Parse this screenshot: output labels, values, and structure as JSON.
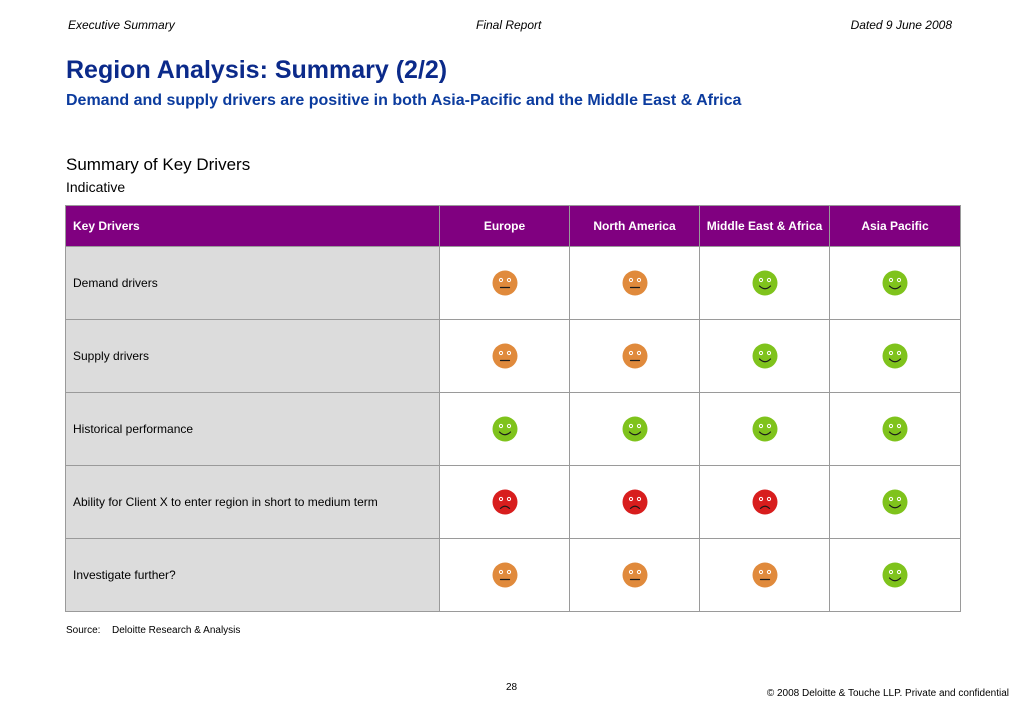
{
  "header": {
    "left": "Executive Summary",
    "center": "Final Report",
    "right": "Dated 9 June 2008"
  },
  "title": "Region Analysis: Summary (2/2)",
  "subtitle": "Demand and supply drivers are positive in both Asia-Pacific and the Middle East & Africa",
  "section": {
    "title": "Summary of Key Drivers",
    "note": "Indicative"
  },
  "table": {
    "columns": [
      "Key Drivers",
      "Europe",
      "North America",
      "Middle East & Africa",
      "Asia Pacific"
    ],
    "rows": [
      {
        "label": "Demand drivers",
        "ratings": [
          "neutral",
          "neutral",
          "positive",
          "positive"
        ]
      },
      {
        "label": "Supply drivers",
        "ratings": [
          "neutral",
          "neutral",
          "positive",
          "positive"
        ]
      },
      {
        "label": "Historical performance",
        "ratings": [
          "positive",
          "positive",
          "positive",
          "positive"
        ]
      },
      {
        "label": "Ability for Client X to enter region in short to medium term",
        "ratings": [
          "negative",
          "negative",
          "negative",
          "positive"
        ]
      },
      {
        "label": "Investigate further?",
        "ratings": [
          "neutral",
          "neutral",
          "neutral",
          "positive"
        ]
      }
    ]
  },
  "rating_colors": {
    "positive": "#7fc31c",
    "neutral": "#e08a3c",
    "negative": "#d81e1e"
  },
  "rating_icons": {
    "positive": "smiley-face-icon",
    "neutral": "neutral-face-icon",
    "negative": "frowning-face-icon"
  },
  "footer": {
    "source_label": "Source:",
    "source_text": "Deloitte Research & Analysis",
    "page_number": "28",
    "copyright": "© 2008 Deloitte & Touche LLP. Private and confidential"
  }
}
